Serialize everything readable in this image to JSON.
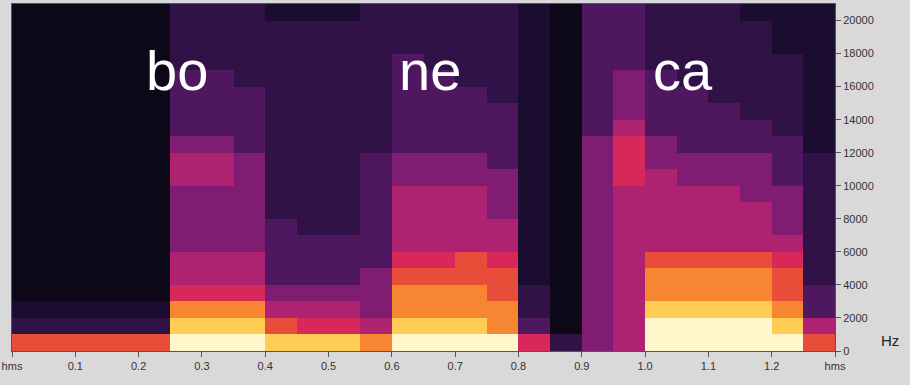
{
  "chart_data": {
    "type": "heatmap",
    "y_label": "Hz",
    "annotations": [
      {
        "text": "bo",
        "x": 0.26,
        "y": 17000
      },
      {
        "text": "ne",
        "x": 0.66,
        "y": 17000
      },
      {
        "text": "ca",
        "x": 1.06,
        "y": 17000
      }
    ],
    "xlim": [
      0,
      1.3
    ],
    "xticks": [
      {
        "value": 0,
        "label": "hms"
      },
      0.1,
      0.2,
      0.3,
      0.4,
      0.5,
      0.6,
      0.7,
      0.8,
      0.9,
      {
        "value": 1,
        "label": "1.0"
      },
      1.1,
      1.2,
      {
        "value": 1.3,
        "label": "hms"
      }
    ],
    "ylim": [
      0,
      21000
    ],
    "yticks": [
      0,
      2000,
      4000,
      6000,
      8000,
      10000,
      12000,
      14000,
      16000,
      18000,
      20000
    ],
    "zlim": [
      0,
      10
    ],
    "x": [
      0.025,
      0.075,
      0.125,
      0.175,
      0.225,
      0.275,
      0.325,
      0.375,
      0.425,
      0.475,
      0.525,
      0.575,
      0.625,
      0.675,
      0.725,
      0.775,
      0.825,
      0.875,
      0.925,
      0.975,
      1.025,
      1.075,
      1.125,
      1.175,
      1.225,
      1.275
    ],
    "y": [
      500,
      1500,
      2500,
      3500,
      4500,
      5500,
      6500,
      7500,
      8500,
      9500,
      10500,
      11500,
      12500,
      13500,
      14500,
      15500,
      16500,
      17500,
      18500,
      19500,
      20500
    ],
    "z": [
      [
        7,
        7,
        7,
        7,
        7,
        10,
        10,
        10,
        9,
        9,
        9,
        8,
        10,
        10,
        10,
        10,
        6,
        2,
        4,
        5,
        10,
        10,
        10,
        10,
        10,
        7
      ],
      [
        2,
        2,
        2,
        2,
        2,
        9,
        9,
        9,
        7,
        6,
        6,
        5,
        9,
        9,
        9,
        8,
        3,
        0,
        4,
        5,
        10,
        10,
        10,
        10,
        9,
        5
      ],
      [
        1,
        1,
        1,
        1,
        1,
        8,
        8,
        8,
        5,
        5,
        5,
        4,
        8,
        8,
        8,
        8,
        2,
        0,
        4,
        5,
        9,
        9,
        9,
        9,
        8,
        3
      ],
      [
        0,
        0,
        0,
        0,
        0,
        6,
        6,
        6,
        4,
        4,
        4,
        4,
        8,
        8,
        8,
        7,
        2,
        0,
        4,
        5,
        8,
        8,
        8,
        8,
        7,
        3
      ],
      [
        0,
        0,
        0,
        0,
        0,
        5,
        5,
        5,
        3,
        3,
        3,
        4,
        7,
        7,
        7,
        7,
        1,
        0,
        4,
        5,
        8,
        8,
        8,
        8,
        7,
        2
      ],
      [
        0,
        0,
        0,
        0,
        0,
        5,
        5,
        5,
        3,
        3,
        3,
        3,
        6,
        6,
        7,
        6,
        1,
        0,
        4,
        5,
        7,
        7,
        7,
        7,
        6,
        2
      ],
      [
        0,
        0,
        0,
        0,
        0,
        4,
        4,
        4,
        3,
        3,
        3,
        3,
        5,
        5,
        5,
        5,
        1,
        0,
        4,
        5,
        5,
        5,
        5,
        5,
        5,
        2
      ],
      [
        0,
        0,
        0,
        0,
        0,
        4,
        4,
        4,
        3,
        2,
        2,
        3,
        5,
        5,
        5,
        5,
        1,
        0,
        4,
        5,
        5,
        5,
        5,
        5,
        4,
        2
      ],
      [
        0,
        0,
        0,
        0,
        0,
        4,
        4,
        4,
        2,
        2,
        2,
        3,
        5,
        5,
        5,
        4,
        1,
        0,
        4,
        5,
        5,
        5,
        5,
        5,
        4,
        2
      ],
      [
        0,
        0,
        0,
        0,
        0,
        4,
        4,
        4,
        2,
        2,
        2,
        3,
        5,
        5,
        5,
        4,
        1,
        0,
        4,
        5,
        5,
        5,
        5,
        4,
        4,
        2
      ],
      [
        0,
        0,
        0,
        0,
        0,
        5,
        5,
        4,
        2,
        2,
        2,
        3,
        4,
        4,
        4,
        4,
        1,
        0,
        4,
        6,
        5,
        4,
        4,
        4,
        3,
        2
      ],
      [
        0,
        0,
        0,
        0,
        0,
        5,
        5,
        4,
        2,
        2,
        2,
        3,
        4,
        4,
        4,
        3,
        1,
        0,
        4,
        6,
        4,
        4,
        4,
        4,
        3,
        2
      ],
      [
        0,
        0,
        0,
        0,
        0,
        4,
        4,
        3,
        2,
        2,
        2,
        2,
        3,
        3,
        3,
        3,
        1,
        0,
        4,
        6,
        4,
        3,
        3,
        3,
        3,
        1
      ],
      [
        0,
        0,
        0,
        0,
        0,
        3,
        3,
        3,
        2,
        2,
        2,
        2,
        3,
        3,
        3,
        3,
        1,
        0,
        3,
        5,
        3,
        3,
        3,
        3,
        2,
        1
      ],
      [
        0,
        0,
        0,
        0,
        0,
        3,
        3,
        3,
        2,
        2,
        2,
        2,
        3,
        3,
        3,
        3,
        1,
        0,
        3,
        4,
        3,
        3,
        3,
        2,
        2,
        1
      ],
      [
        0,
        0,
        0,
        0,
        0,
        3,
        3,
        3,
        2,
        2,
        2,
        2,
        3,
        3,
        3,
        2,
        1,
        0,
        3,
        4,
        3,
        3,
        2,
        2,
        2,
        1
      ],
      [
        0,
        0,
        0,
        0,
        0,
        3,
        3,
        2,
        2,
        2,
        2,
        2,
        3,
        3,
        2,
        2,
        1,
        0,
        3,
        4,
        3,
        2,
        2,
        2,
        2,
        1
      ],
      [
        0,
        0,
        0,
        0,
        0,
        2,
        2,
        2,
        2,
        2,
        2,
        2,
        3,
        2,
        2,
        2,
        1,
        0,
        3,
        3,
        2,
        2,
        2,
        2,
        2,
        1
      ],
      [
        0,
        0,
        0,
        0,
        0,
        2,
        2,
        2,
        2,
        2,
        2,
        2,
        2,
        2,
        2,
        2,
        1,
        0,
        3,
        3,
        2,
        2,
        2,
        2,
        1,
        1
      ],
      [
        0,
        0,
        0,
        0,
        0,
        2,
        2,
        2,
        2,
        2,
        2,
        2,
        2,
        2,
        2,
        2,
        1,
        0,
        3,
        3,
        2,
        2,
        2,
        2,
        1,
        1
      ],
      [
        0,
        0,
        0,
        0,
        0,
        2,
        2,
        2,
        1,
        1,
        1,
        2,
        2,
        2,
        2,
        2,
        1,
        0,
        3,
        3,
        2,
        2,
        2,
        1,
        1,
        1
      ]
    ]
  }
}
